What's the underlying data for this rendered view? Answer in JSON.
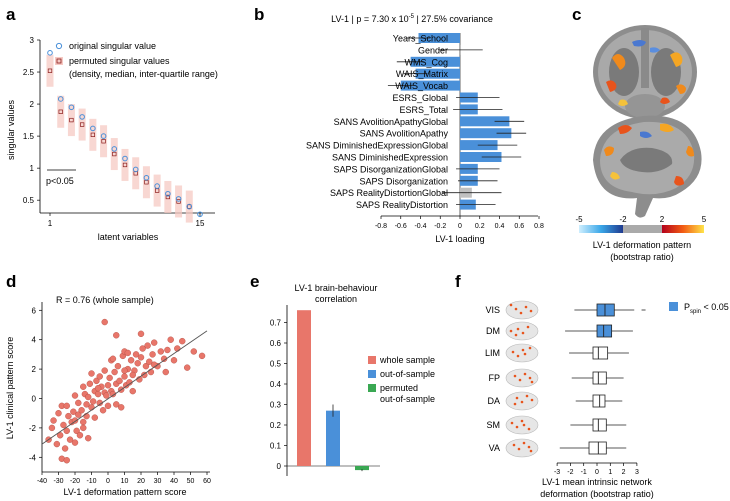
{
  "panels": {
    "a": "a",
    "b": "b",
    "c": "c",
    "d": "d",
    "e": "e",
    "f": "f"
  },
  "panel_a": {
    "legend_original": "original singular value",
    "legend_permuted_1": "permuted singular values",
    "legend_permuted_2": "(density, median, inter-quartile range)",
    "ylabel": "singular values",
    "xlabel": "latent variables",
    "p_note": "p<0.05",
    "xticks": [
      "1",
      "15"
    ],
    "yticks": [
      "0.5",
      "1",
      "1.5",
      "2",
      "2.5",
      "3"
    ]
  },
  "panel_b": {
    "title_prefix": "LV-1 | p = 7.30 x 10",
    "title_exp": "-5",
    "title_suffix": " | 27.5% covariance",
    "xlabel": "LV-1 loading",
    "xticks": [
      "-0.8",
      "-0.6",
      "-0.4",
      "-0.2",
      "0",
      "0.2",
      "0.4",
      "0.6",
      "0.8"
    ]
  },
  "panel_c": {
    "colorbar_ticks": [
      "-5",
      "-2",
      "2",
      "5"
    ],
    "caption_1": "LV-1 deformation pattern",
    "caption_2": "(bootstrap ratio)"
  },
  "panel_d": {
    "annotation": "R = 0.76 (whole sample)",
    "xlabel": "LV-1 deformation pattern score",
    "ylabel": "LV-1 clinical pattern score",
    "xticks": [
      "-40",
      "-30",
      "-20",
      "-10",
      "0",
      "10",
      "20",
      "30",
      "40",
      "50",
      "60"
    ],
    "yticks": [
      "-4",
      "-2",
      "0",
      "2",
      "4",
      "6"
    ]
  },
  "panel_e": {
    "title_1": "LV-1 brain-behaviour",
    "title_2": "correlation",
    "yticks": [
      "0",
      "0.1",
      "0.2",
      "0.3",
      "0.4",
      "0.5",
      "0.6",
      "0.7"
    ],
    "legend": [
      "whole sample",
      "out-of-sample",
      "permuted",
      "out-of-sample"
    ]
  },
  "panel_f": {
    "legend_p": "P",
    "legend_sub": "spin",
    "legend_rest": " < 0.05",
    "xticks": [
      "-3",
      "-2",
      "-1",
      "0",
      "1",
      "2",
      "3"
    ],
    "xlabel_1": "LV-1 mean intrinsic network",
    "xlabel_2": "deformation (bootstrap ratio)"
  },
  "colors": {
    "blue": "#4a90d9",
    "salmon": "#e8766a",
    "green": "#3aa853",
    "gray": "#c0c0c0",
    "shade": "#f6c9c3"
  },
  "chart_data": [
    {
      "panel": "a",
      "type": "scatter",
      "xlabel": "latent variables",
      "ylabel": "singular values",
      "xlim": [
        1,
        15
      ],
      "ylim": [
        0.3,
        3.0
      ],
      "series": [
        {
          "name": "original singular value",
          "x": [
            1,
            2,
            3,
            4,
            5,
            6,
            7,
            8,
            9,
            10,
            11,
            12,
            13,
            14,
            15
          ],
          "values": [
            2.8,
            2.08,
            1.95,
            1.8,
            1.62,
            1.5,
            1.3,
            1.15,
            0.98,
            0.85,
            0.72,
            0.6,
            0.52,
            0.4,
            0.28
          ]
        },
        {
          "name": "permuted singular values",
          "x": [
            1,
            2,
            3,
            4,
            5,
            6,
            7,
            8,
            9,
            10,
            11,
            12,
            13,
            14
          ],
          "values": [
            2.52,
            1.88,
            1.75,
            1.68,
            1.52,
            1.42,
            1.22,
            1.05,
            0.92,
            0.78,
            0.65,
            0.55,
            0.48,
            0.4
          ]
        }
      ]
    },
    {
      "panel": "b",
      "type": "bar",
      "xlabel": "LV-1 loading",
      "xlim": [
        -0.8,
        0.8
      ],
      "categories": [
        "Years_School",
        "Gender",
        "WMS_Cog",
        "WAIS_Matrix",
        "WAIS_Vocab",
        "ESRS_Global",
        "ESRS_Total",
        "SANS AvolitionApathyGlobal",
        "SANS AvolitionApathy",
        "SANS DiminishedExpressionGlobal",
        "SANS DiminishedExpression",
        "SAPS DisorganizationGlobal",
        "SAPS Disorganization",
        "SAPS RealityDistortionGlobal",
        "SAPS RealityDistortion"
      ],
      "values": [
        -0.42,
        0.01,
        -0.5,
        -0.45,
        -0.6,
        0.18,
        0.18,
        0.5,
        0.52,
        0.38,
        0.42,
        0.18,
        0.18,
        0.12,
        0.16
      ],
      "errors": [
        0.12,
        0.22,
        0.14,
        0.12,
        0.13,
        0.22,
        0.25,
        0.15,
        0.15,
        0.2,
        0.2,
        0.22,
        0.2,
        0.3,
        0.2
      ],
      "significant": [
        true,
        false,
        true,
        true,
        true,
        true,
        true,
        true,
        true,
        true,
        true,
        true,
        true,
        false,
        true
      ]
    },
    {
      "panel": "d",
      "type": "scatter",
      "xlabel": "LV-1 deformation pattern score",
      "ylabel": "LV-1 clinical pattern score",
      "xlim": [
        -40,
        60
      ],
      "ylim": [
        -5,
        6
      ],
      "fit": {
        "x": [
          -40,
          60
        ],
        "y": [
          -3.1,
          4.6
        ]
      },
      "x": [
        -36,
        -34,
        -33,
        -31,
        -30,
        -29,
        -28,
        -27,
        -26,
        -25,
        -25,
        -24,
        -23,
        -22,
        -21,
        -20,
        -20,
        -19,
        -18,
        -18,
        -17,
        -16,
        -15,
        -15,
        -14,
        -13,
        -13,
        -12,
        -11,
        -10,
        -10,
        -9,
        -8,
        -8,
        -7,
        -6,
        -5,
        -5,
        -4,
        -3,
        -2,
        -2,
        -1,
        0,
        0,
        1,
        2,
        2,
        3,
        4,
        5,
        5,
        6,
        7,
        8,
        9,
        10,
        10,
        11,
        12,
        13,
        14,
        15,
        16,
        17,
        18,
        19,
        20,
        21,
        22,
        23,
        24,
        25,
        26,
        27,
        28,
        30,
        32,
        34,
        36,
        38,
        40,
        42,
        45,
        48,
        52,
        57,
        -2,
        5,
        -20,
        15,
        -28,
        28,
        -12,
        10,
        -6,
        8,
        20,
        -15,
        3,
        12,
        -25,
        35
      ],
      "y": [
        -2.8,
        -2,
        -1.5,
        -3.1,
        -1,
        -2.5,
        -0.5,
        -1.8,
        -3.4,
        -2.2,
        -0.5,
        -1.2,
        -2.8,
        -1.6,
        -0.9,
        0.2,
        -1.5,
        -2.2,
        -0.3,
        -1.1,
        -2.5,
        -0.8,
        0.8,
        -1.6,
        0.3,
        -0.4,
        -1.2,
        0.1,
        1,
        -0.6,
        1.7,
        -0.2,
        0.5,
        -1.3,
        1.2,
        0.3,
        -0.3,
        1.5,
        0.8,
        -0.8,
        0.4,
        1.9,
        0.2,
        0.9,
        -0.5,
        1.4,
        0.5,
        2.6,
        0.3,
        1.8,
        1,
        -0.4,
        2.2,
        1.2,
        0.6,
        2.9,
        1.5,
        3.2,
        0.9,
        2,
        1.1,
        2.6,
        0.5,
        1.9,
        3,
        2.4,
        1.3,
        2.8,
        3.4,
        1.6,
        2.2,
        3.6,
        2.5,
        1.8,
        3,
        3.8,
        2.2,
        3.2,
        2.7,
        3.3,
        4,
        2.6,
        3.4,
        3.9,
        2.1,
        3.2,
        2.9,
        5.2,
        4.3,
        -3,
        1.6,
        -4.1,
        2.3,
        -2.7,
        1.9,
        0.7,
        -0.6,
        4.4,
        -2,
        2.7,
        3.1,
        -4.2,
        1.8
      ]
    },
    {
      "panel": "e",
      "type": "bar",
      "title": "LV-1 brain-behaviour correlation",
      "ylim": [
        -0.05,
        0.8
      ],
      "categories": [
        "whole sample",
        "out-of-sample",
        "permuted out-of-sample"
      ],
      "values": [
        0.76,
        0.27,
        -0.02
      ],
      "errors": [
        0,
        0.03,
        0.005
      ]
    },
    {
      "panel": "f",
      "type": "boxplot",
      "xlim": [
        -3,
        3
      ],
      "categories": [
        "VIS",
        "DM",
        "LIM",
        "FP",
        "DA",
        "SM",
        "VA"
      ],
      "whisker_low": [
        -1.7,
        -2.4,
        -2.1,
        -1.9,
        -1.6,
        -2.0,
        -2.8
      ],
      "q1": [
        0.0,
        0.0,
        -0.3,
        -0.3,
        -0.3,
        -0.3,
        -0.6
      ],
      "median": [
        0.6,
        0.5,
        0.1,
        0.1,
        0.2,
        0.1,
        0.1
      ],
      "q3": [
        1.3,
        1.1,
        0.8,
        0.7,
        0.6,
        0.7,
        0.7
      ],
      "whisker_high": [
        2.8,
        2.7,
        2.4,
        2.0,
        1.9,
        2.2,
        2.2
      ],
      "outlier_high": [
        3.5,
        null,
        null,
        null,
        null,
        null,
        null
      ],
      "significant": [
        true,
        true,
        false,
        false,
        false,
        false,
        false
      ]
    }
  ]
}
